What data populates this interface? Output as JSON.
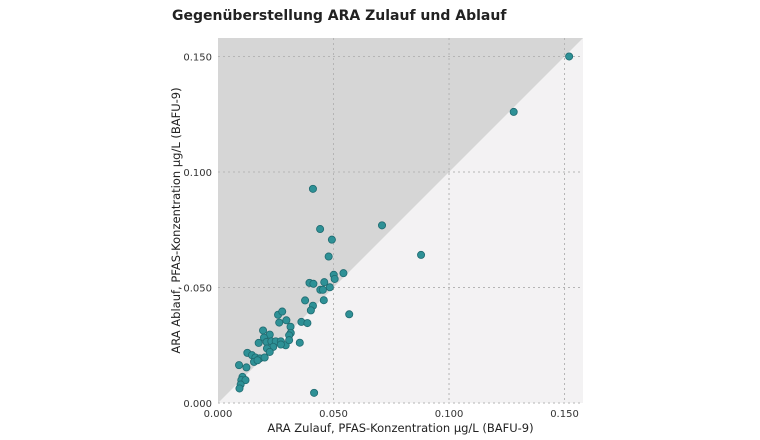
{
  "chart_data": {
    "type": "scatter",
    "title": "Gegenüberstellung ARA Zulauf und Ablauf",
    "xlabel": "ARA Zulauf, PFAS-Konzentration µg/L (BAFU-9)",
    "ylabel": "ARA Ablauf, PFAS-Konzentration µg/L (BAFU-9)",
    "xlim": [
      0,
      0.158
    ],
    "ylim": [
      0,
      0.158
    ],
    "xticks": [
      "0.000",
      "0.050",
      "0.100",
      "0.150"
    ],
    "yticks": [
      "0.000",
      "0.050",
      "0.100",
      "0.150"
    ],
    "grid": true,
    "reference_line": "y = x (region above shaded darker)",
    "colors": {
      "point": "#2e9196",
      "point_edge": "#1f6a70",
      "upper_region": "#d6d6d6",
      "lower_region": "#f3f2f3",
      "grid": "#b5b5b5"
    },
    "points": [
      [
        0.152,
        0.15
      ],
      [
        0.128,
        0.126
      ],
      [
        0.0879,
        0.0641
      ],
      [
        0.071,
        0.0769
      ],
      [
        0.0411,
        0.0927
      ],
      [
        0.0442,
        0.0753
      ],
      [
        0.0493,
        0.0707
      ],
      [
        0.0479,
        0.0634
      ],
      [
        0.0501,
        0.0555
      ],
      [
        0.0543,
        0.0562
      ],
      [
        0.0505,
        0.0537
      ],
      [
        0.0396,
        0.052
      ],
      [
        0.0413,
        0.0516
      ],
      [
        0.046,
        0.0523
      ],
      [
        0.0443,
        0.049
      ],
      [
        0.0454,
        0.049
      ],
      [
        0.0484,
        0.0501
      ],
      [
        0.0377,
        0.0444
      ],
      [
        0.0458,
        0.0445
      ],
      [
        0.0411,
        0.0421
      ],
      [
        0.0402,
        0.0401
      ],
      [
        0.0568,
        0.0384
      ],
      [
        0.026,
        0.0382
      ],
      [
        0.0278,
        0.0396
      ],
      [
        0.0265,
        0.0348
      ],
      [
        0.0296,
        0.0358
      ],
      [
        0.0361,
        0.0351
      ],
      [
        0.0387,
        0.0346
      ],
      [
        0.0195,
        0.0314
      ],
      [
        0.0224,
        0.0296
      ],
      [
        0.0314,
        0.033
      ],
      [
        0.0315,
        0.0303
      ],
      [
        0.0308,
        0.0293
      ],
      [
        0.0199,
        0.0283
      ],
      [
        0.0176,
        0.026
      ],
      [
        0.021,
        0.0264
      ],
      [
        0.0231,
        0.0267
      ],
      [
        0.025,
        0.0267
      ],
      [
        0.0272,
        0.0267
      ],
      [
        0.0293,
        0.025
      ],
      [
        0.0272,
        0.0253
      ],
      [
        0.0308,
        0.0272
      ],
      [
        0.0354,
        0.0261
      ],
      [
        0.0239,
        0.0243
      ],
      [
        0.0212,
        0.0236
      ],
      [
        0.0224,
        0.0221
      ],
      [
        0.0127,
        0.0217
      ],
      [
        0.0147,
        0.0207
      ],
      [
        0.0162,
        0.0197
      ],
      [
        0.0181,
        0.0193
      ],
      [
        0.0156,
        0.0178
      ],
      [
        0.0171,
        0.0185
      ],
      [
        0.0202,
        0.0197
      ],
      [
        0.0091,
        0.0164
      ],
      [
        0.0123,
        0.0154
      ],
      [
        0.0106,
        0.0113
      ],
      [
        0.0101,
        0.0099
      ],
      [
        0.0119,
        0.0099
      ],
      [
        0.0098,
        0.008
      ],
      [
        0.0093,
        0.0063
      ],
      [
        0.0416,
        0.0044
      ]
    ]
  }
}
